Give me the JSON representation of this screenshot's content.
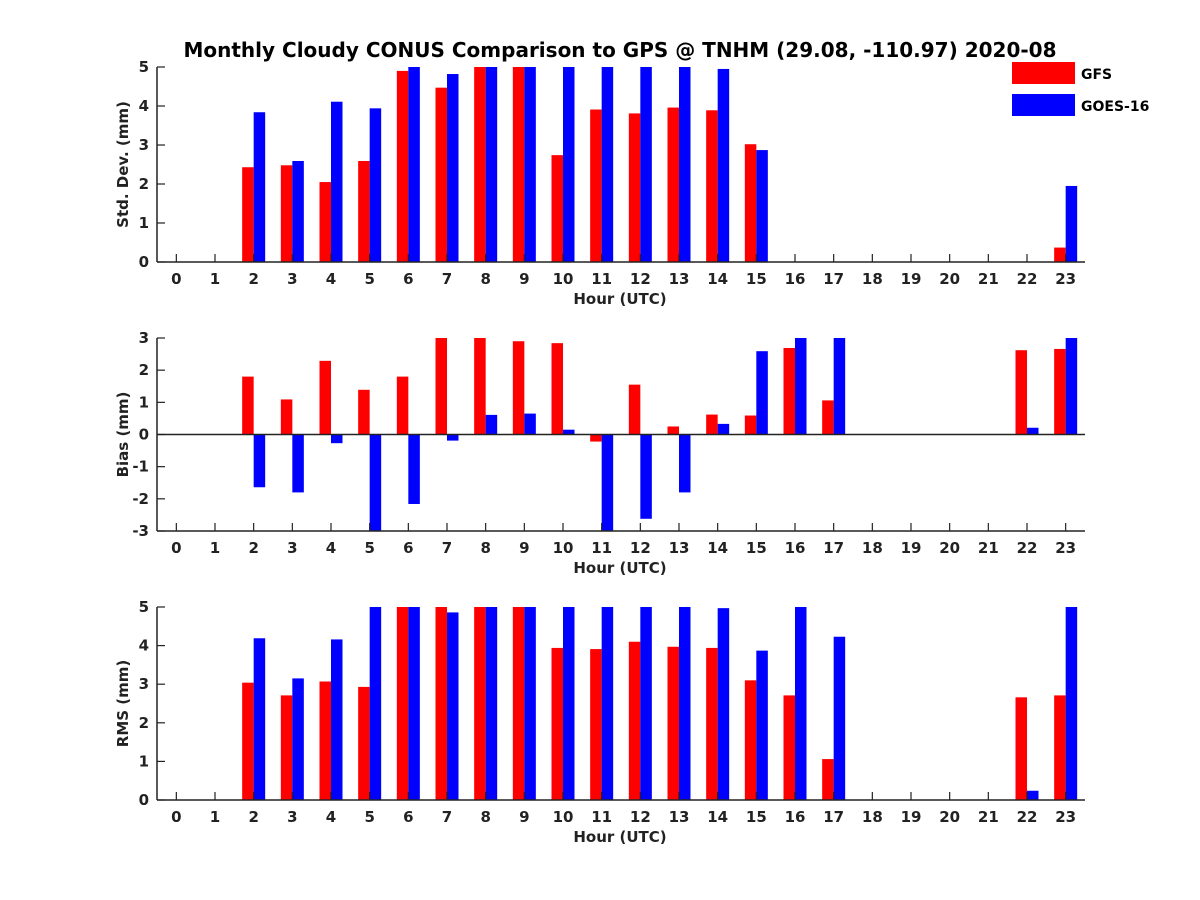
{
  "figure": {
    "title": "Monthly Cloudy CONUS Comparison to GPS @ TNHM (29.08, -110.97) 2020-08"
  },
  "legend": [
    {
      "name": "GFS",
      "color": "#ff0000"
    },
    {
      "name": "GOES-16",
      "color": "#0000ff"
    }
  ],
  "chart_data": [
    {
      "type": "bar",
      "ylabel": "Std. Dev. (mm)",
      "xlabel": "Hour (UTC)",
      "ylim": [
        0,
        5
      ],
      "yticks": [
        0,
        1,
        2,
        3,
        4,
        5
      ],
      "categories": [
        "0",
        "1",
        "2",
        "3",
        "4",
        "5",
        "6",
        "7",
        "8",
        "9",
        "10",
        "11",
        "12",
        "13",
        "14",
        "15",
        "16",
        "17",
        "18",
        "19",
        "20",
        "21",
        "22",
        "23"
      ],
      "series": [
        {
          "name": "GFS",
          "color": "#ff0000",
          "values": [
            null,
            null,
            2.43,
            2.48,
            2.05,
            2.59,
            4.9,
            4.47,
            5,
            5,
            2.74,
            3.91,
            3.81,
            3.96,
            3.89,
            3.02,
            null,
            null,
            null,
            null,
            null,
            null,
            null,
            0.37
          ]
        },
        {
          "name": "GOES-16",
          "color": "#0000ff",
          "values": [
            null,
            null,
            3.84,
            2.59,
            4.11,
            3.94,
            5,
            4.82,
            5,
            5,
            5,
            5,
            5,
            5,
            4.95,
            2.87,
            null,
            null,
            null,
            null,
            null,
            null,
            null,
            1.95
          ]
        }
      ]
    },
    {
      "type": "bar",
      "ylabel": "Bias (mm)",
      "xlabel": "Hour (UTC)",
      "ylim": [
        -3,
        3
      ],
      "yticks": [
        -3,
        -2,
        -1,
        0,
        1,
        2,
        3
      ],
      "zero_line": true,
      "categories": [
        "0",
        "1",
        "2",
        "3",
        "4",
        "5",
        "6",
        "7",
        "8",
        "9",
        "10",
        "11",
        "12",
        "13",
        "14",
        "15",
        "16",
        "17",
        "18",
        "19",
        "20",
        "21",
        "22",
        "23"
      ],
      "series": [
        {
          "name": "GFS",
          "color": "#ff0000",
          "values": [
            null,
            null,
            1.8,
            1.09,
            2.29,
            1.39,
            1.8,
            3,
            3,
            2.9,
            2.84,
            -0.22,
            1.55,
            0.25,
            0.62,
            0.59,
            2.69,
            1.06,
            null,
            null,
            null,
            null,
            2.62,
            2.66
          ]
        },
        {
          "name": "GOES-16",
          "color": "#0000ff",
          "values": [
            null,
            null,
            -1.64,
            -1.8,
            -0.27,
            -3,
            -2.16,
            -0.19,
            0.61,
            0.65,
            0.15,
            -3,
            -2.62,
            -1.8,
            0.33,
            2.59,
            3,
            3,
            null,
            null,
            null,
            null,
            0.21,
            3
          ]
        }
      ]
    },
    {
      "type": "bar",
      "ylabel": "RMS (mm)",
      "xlabel": "Hour (UTC)",
      "ylim": [
        0,
        5
      ],
      "yticks": [
        0,
        1,
        2,
        3,
        4,
        5
      ],
      "categories": [
        "0",
        "1",
        "2",
        "3",
        "4",
        "5",
        "6",
        "7",
        "8",
        "9",
        "10",
        "11",
        "12",
        "13",
        "14",
        "15",
        "16",
        "17",
        "18",
        "19",
        "20",
        "21",
        "22",
        "23"
      ],
      "series": [
        {
          "name": "GFS",
          "color": "#ff0000",
          "values": [
            null,
            null,
            3.04,
            2.71,
            3.07,
            2.93,
            5,
            5,
            5,
            5,
            3.94,
            3.91,
            4.1,
            3.97,
            3.94,
            3.1,
            2.71,
            1.06,
            null,
            null,
            null,
            null,
            2.66,
            2.71
          ]
        },
        {
          "name": "GOES-16",
          "color": "#0000ff",
          "values": [
            null,
            null,
            4.19,
            3.15,
            4.16,
            5,
            5,
            4.86,
            5,
            5,
            5,
            5,
            5,
            5,
            4.97,
            3.87,
            5,
            4.23,
            null,
            null,
            null,
            null,
            0.24,
            5
          ]
        }
      ]
    }
  ]
}
